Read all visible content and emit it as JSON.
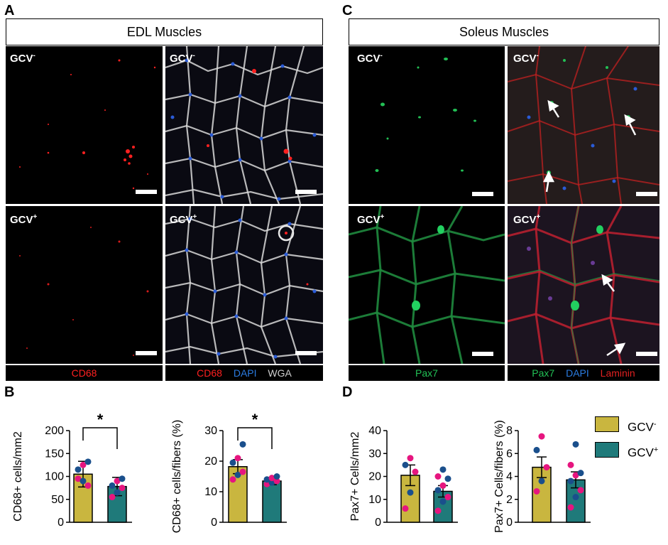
{
  "panels": {
    "A": "A",
    "B": "B",
    "C": "C",
    "D": "D"
  },
  "headers": {
    "edl": "EDL Muscles",
    "soleus": "Soleus Muscles"
  },
  "image_labels": {
    "gcv_minus": "GCV",
    "gcv_plus": "GCV",
    "minus_sup": "-",
    "plus_sup": "+"
  },
  "stain_labels": {
    "edl_left": [
      "CD68"
    ],
    "edl_right": [
      "CD68",
      "DAPI",
      "WGA"
    ],
    "sol_left": [
      "Pax7"
    ],
    "sol_right": [
      "Pax7",
      "DAPI",
      "Laminin"
    ]
  },
  "colors": {
    "gcv_minus": "#c9b63f",
    "gcv_plus": "#1f7a7a",
    "dot_pink": "#e6157f",
    "dot_blue": "#1a4f8c",
    "cd68": "#ff2020",
    "dapi": "#2a5bd7",
    "wga": "#cfcfcf",
    "pax7": "#22c055",
    "laminin": "#e02020"
  },
  "legend": {
    "items": [
      {
        "label": "GCV",
        "sup": "-",
        "color": "#c9b63f"
      },
      {
        "label": "GCV",
        "sup": "+",
        "color": "#1f7a7a"
      }
    ]
  },
  "significance": "*",
  "chart_data": [
    {
      "type": "bar",
      "id": "cd68-density",
      "ylabel": "CD68+ cells/mm2",
      "ylim": [
        0,
        200
      ],
      "yticks": [
        0,
        50,
        100,
        150,
        200
      ],
      "categories": [
        "GCV-",
        "GCV+"
      ],
      "values": [
        105,
        78
      ],
      "errors": [
        28,
        20
      ],
      "significant": true,
      "points": [
        [
          95,
          90,
          80,
          115,
          125,
          132
        ],
        [
          55,
          65,
          75,
          80,
          90,
          95
        ]
      ]
    },
    {
      "type": "bar",
      "id": "cd68-fibers",
      "ylabel": "CD68+ cells/fibers (%)",
      "ylim": [
        0,
        30
      ],
      "yticks": [
        0,
        10,
        20,
        30
      ],
      "categories": [
        "GCV-",
        "GCV+"
      ],
      "values": [
        18.2,
        13.5
      ],
      "errors": [
        2.3,
        1.2
      ],
      "significant": true,
      "points": [
        [
          14,
          15.5,
          16.5,
          19.5,
          21,
          25.5
        ],
        [
          12.5,
          13,
          13.5,
          14,
          14.5,
          15
        ]
      ]
    },
    {
      "type": "bar",
      "id": "pax7-density",
      "ylabel": "Pax7+ Cells/mm2",
      "ylim": [
        0,
        40
      ],
      "yticks": [
        0,
        10,
        20,
        30,
        40
      ],
      "categories": [
        "GCV-",
        "GCV+"
      ],
      "values": [
        20.5,
        13.5
      ],
      "errors": [
        4.5,
        2.5
      ],
      "significant": false,
      "points": [
        [
          6,
          13,
          22,
          25,
          28
        ],
        [
          5,
          9,
          11,
          14,
          16,
          19,
          20,
          23
        ]
      ]
    },
    {
      "type": "bar",
      "id": "pax7-fibers",
      "ylabel": "Pax7+ Cells/fibers (%)",
      "ylim": [
        0,
        8
      ],
      "yticks": [
        0,
        2,
        4,
        6,
        8
      ],
      "categories": [
        "GCV-",
        "GCV+"
      ],
      "values": [
        4.8,
        3.7
      ],
      "errors": [
        0.9,
        0.7
      ],
      "significant": false,
      "points": [
        [
          2.7,
          3.6,
          4.8,
          6.3,
          7.5
        ],
        [
          1.3,
          2.2,
          2.8,
          3.6,
          4.1,
          4.3,
          5.0,
          6.8
        ]
      ]
    }
  ]
}
